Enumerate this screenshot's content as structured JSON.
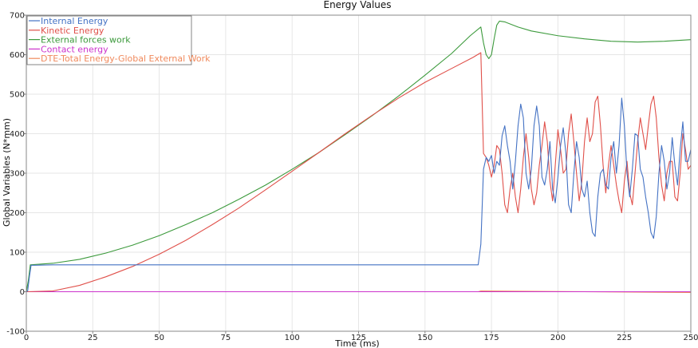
{
  "chart_data": {
    "type": "line",
    "title": "Energy Values",
    "xlabel": "Time (ms)",
    "ylabel": "Global Variables (N*mm)",
    "xlim": [
      0,
      250
    ],
    "ylim": [
      -100,
      700
    ],
    "xticks": [
      0,
      25,
      50,
      75,
      100,
      125,
      150,
      175,
      200,
      225,
      250
    ],
    "yticks": [
      -100,
      0,
      100,
      200,
      300,
      400,
      500,
      600,
      700
    ],
    "grid": true,
    "legend_position": "top-left",
    "series": [
      {
        "name": "Internal Energy",
        "color": "#4472c4",
        "points": [
          [
            0,
            0
          ],
          [
            0.5,
            2
          ],
          [
            1.2,
            40
          ],
          [
            1.8,
            67
          ],
          [
            3,
            67
          ],
          [
            10,
            68
          ],
          [
            50,
            68
          ],
          [
            100,
            68
          ],
          [
            150,
            68
          ],
          [
            170,
            68
          ],
          [
            171,
            120
          ],
          [
            172,
            310
          ],
          [
            173,
            340
          ],
          [
            174,
            330
          ],
          [
            175,
            345
          ],
          [
            176,
            300
          ],
          [
            177,
            330
          ],
          [
            178,
            320
          ],
          [
            179,
            395
          ],
          [
            180,
            420
          ],
          [
            181,
            370
          ],
          [
            182,
            330
          ],
          [
            183,
            260
          ],
          [
            184,
            330
          ],
          [
            185,
            420
          ],
          [
            186,
            475
          ],
          [
            187,
            440
          ],
          [
            188,
            300
          ],
          [
            189,
            260
          ],
          [
            190,
            310
          ],
          [
            191,
            420
          ],
          [
            192,
            470
          ],
          [
            193,
            420
          ],
          [
            194,
            290
          ],
          [
            195,
            270
          ],
          [
            196,
            310
          ],
          [
            197,
            380
          ],
          [
            198,
            260
          ],
          [
            199,
            225
          ],
          [
            200,
            290
          ],
          [
            201,
            370
          ],
          [
            202,
            415
          ],
          [
            203,
            350
          ],
          [
            204,
            220
          ],
          [
            205,
            200
          ],
          [
            206,
            300
          ],
          [
            207,
            380
          ],
          [
            208,
            340
          ],
          [
            209,
            260
          ],
          [
            210,
            240
          ],
          [
            211,
            280
          ],
          [
            212,
            200
          ],
          [
            213,
            150
          ],
          [
            214,
            140
          ],
          [
            215,
            240
          ],
          [
            216,
            300
          ],
          [
            217,
            310
          ],
          [
            218,
            270
          ],
          [
            219,
            260
          ],
          [
            220,
            340
          ],
          [
            221,
            380
          ],
          [
            222,
            300
          ],
          [
            223,
            370
          ],
          [
            224,
            490
          ],
          [
            225,
            420
          ],
          [
            226,
            300
          ],
          [
            227,
            240
          ],
          [
            228,
            310
          ],
          [
            229,
            400
          ],
          [
            230,
            395
          ],
          [
            231,
            310
          ],
          [
            232,
            290
          ],
          [
            233,
            240
          ],
          [
            234,
            200
          ],
          [
            235,
            150
          ],
          [
            236,
            135
          ],
          [
            237,
            190
          ],
          [
            238,
            300
          ],
          [
            239,
            370
          ],
          [
            240,
            330
          ],
          [
            241,
            260
          ],
          [
            242,
            300
          ],
          [
            243,
            390
          ],
          [
            244,
            320
          ],
          [
            245,
            270
          ],
          [
            246,
            360
          ],
          [
            247,
            430
          ],
          [
            248,
            330
          ],
          [
            249,
            330
          ],
          [
            250,
            360
          ]
        ]
      },
      {
        "name": "Kinetic Energy",
        "color": "#e0504a",
        "points": [
          [
            0,
            0
          ],
          [
            10,
            2
          ],
          [
            20,
            16
          ],
          [
            30,
            38
          ],
          [
            40,
            64
          ],
          [
            50,
            95
          ],
          [
            60,
            130
          ],
          [
            70,
            170
          ],
          [
            80,
            212
          ],
          [
            90,
            258
          ],
          [
            100,
            305
          ],
          [
            110,
            352
          ],
          [
            120,
            400
          ],
          [
            130,
            446
          ],
          [
            140,
            490
          ],
          [
            150,
            530
          ],
          [
            160,
            565
          ],
          [
            168,
            593
          ],
          [
            171,
            605
          ],
          [
            172,
            350
          ],
          [
            173,
            340
          ],
          [
            174,
            320
          ],
          [
            175,
            290
          ],
          [
            176,
            320
          ],
          [
            177,
            370
          ],
          [
            178,
            360
          ],
          [
            179,
            300
          ],
          [
            180,
            220
          ],
          [
            181,
            200
          ],
          [
            182,
            260
          ],
          [
            183,
            300
          ],
          [
            184,
            240
          ],
          [
            185,
            200
          ],
          [
            186,
            260
          ],
          [
            187,
            340
          ],
          [
            188,
            400
          ],
          [
            189,
            340
          ],
          [
            190,
            260
          ],
          [
            191,
            220
          ],
          [
            192,
            250
          ],
          [
            193,
            320
          ],
          [
            194,
            370
          ],
          [
            195,
            430
          ],
          [
            196,
            380
          ],
          [
            197,
            280
          ],
          [
            198,
            230
          ],
          [
            199,
            320
          ],
          [
            200,
            410
          ],
          [
            201,
            360
          ],
          [
            202,
            300
          ],
          [
            203,
            310
          ],
          [
            204,
            400
          ],
          [
            205,
            450
          ],
          [
            206,
            380
          ],
          [
            207,
            300
          ],
          [
            208,
            230
          ],
          [
            209,
            280
          ],
          [
            210,
            380
          ],
          [
            211,
            440
          ],
          [
            212,
            380
          ],
          [
            213,
            400
          ],
          [
            214,
            480
          ],
          [
            215,
            495
          ],
          [
            216,
            420
          ],
          [
            217,
            320
          ],
          [
            218,
            250
          ],
          [
            219,
            320
          ],
          [
            220,
            370
          ],
          [
            221,
            320
          ],
          [
            222,
            270
          ],
          [
            223,
            230
          ],
          [
            224,
            200
          ],
          [
            225,
            280
          ],
          [
            226,
            330
          ],
          [
            227,
            250
          ],
          [
            228,
            220
          ],
          [
            229,
            300
          ],
          [
            230,
            380
          ],
          [
            231,
            440
          ],
          [
            232,
            400
          ],
          [
            233,
            360
          ],
          [
            234,
            420
          ],
          [
            235,
            475
          ],
          [
            236,
            495
          ],
          [
            237,
            440
          ],
          [
            238,
            340
          ],
          [
            239,
            270
          ],
          [
            240,
            230
          ],
          [
            241,
            300
          ],
          [
            242,
            330
          ],
          [
            243,
            330
          ],
          [
            244,
            240
          ],
          [
            245,
            230
          ],
          [
            246,
            300
          ],
          [
            247,
            400
          ],
          [
            248,
            360
          ],
          [
            249,
            310
          ],
          [
            250,
            320
          ]
        ]
      },
      {
        "name": "External forces work",
        "color": "#3c9a3c",
        "points": [
          [
            0,
            0
          ],
          [
            0.8,
            30
          ],
          [
            1.5,
            68
          ],
          [
            10,
            72
          ],
          [
            20,
            82
          ],
          [
            30,
            98
          ],
          [
            40,
            118
          ],
          [
            50,
            142
          ],
          [
            60,
            170
          ],
          [
            70,
            200
          ],
          [
            80,
            234
          ],
          [
            90,
            270
          ],
          [
            100,
            310
          ],
          [
            110,
            352
          ],
          [
            120,
            398
          ],
          [
            130,
            445
          ],
          [
            140,
            495
          ],
          [
            150,
            548
          ],
          [
            160,
            603
          ],
          [
            167,
            648
          ],
          [
            171,
            670
          ],
          [
            172,
            630
          ],
          [
            173,
            600
          ],
          [
            174,
            590
          ],
          [
            175,
            600
          ],
          [
            176,
            640
          ],
          [
            177,
            675
          ],
          [
            178,
            685
          ],
          [
            180,
            683
          ],
          [
            185,
            670
          ],
          [
            190,
            660
          ],
          [
            200,
            648
          ],
          [
            210,
            640
          ],
          [
            220,
            634
          ],
          [
            230,
            632
          ],
          [
            240,
            634
          ],
          [
            250,
            638
          ]
        ]
      },
      {
        "name": "Contact energy",
        "color": "#cc33cc",
        "points": [
          [
            0,
            0
          ],
          [
            250,
            0
          ]
        ]
      },
      {
        "name": "DTE-Total Energy-Global External Work",
        "color": "#f08a5d",
        "points": [
          [
            0,
            0
          ],
          [
            170,
            0
          ],
          [
            171,
            2
          ],
          [
            250,
            -2
          ]
        ]
      }
    ]
  }
}
